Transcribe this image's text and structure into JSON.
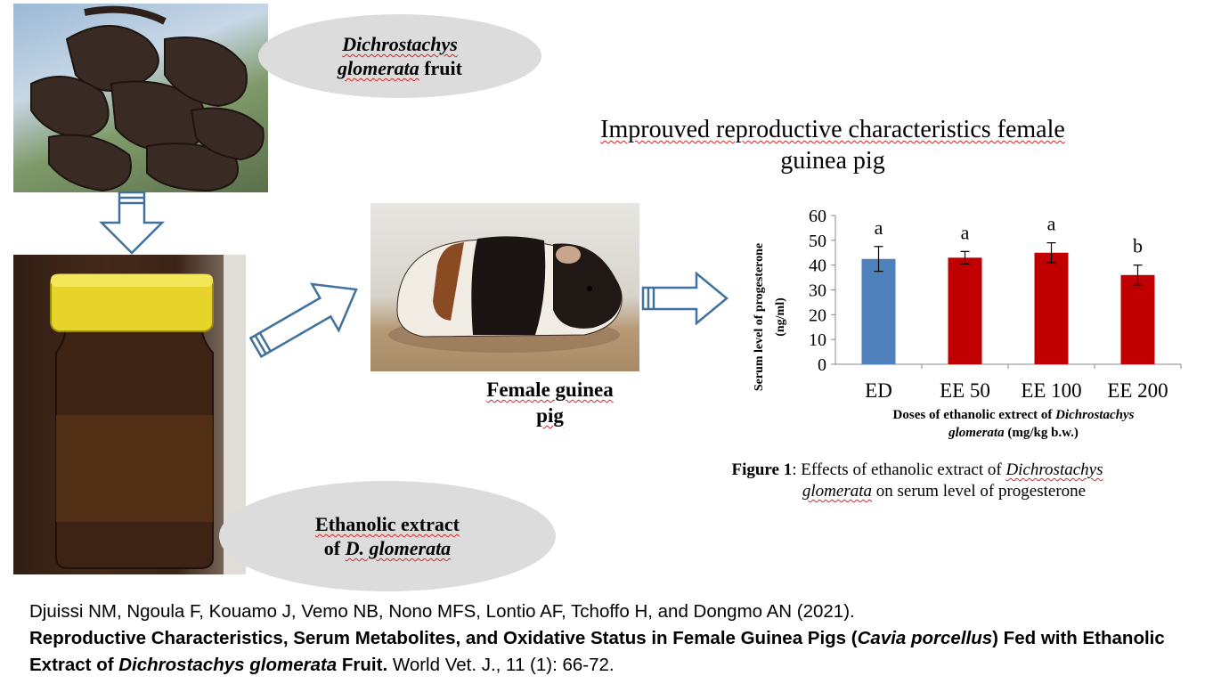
{
  "fruit_label": {
    "italic": "Dichrostachys glomerata",
    "rest": "fruit",
    "line1": "Dichrostachys",
    "line2_italic": "glomerata",
    "line2_rest": " fruit"
  },
  "extract_label": {
    "line1": "Ethanolic extract",
    "line2_prefix": "of ",
    "line2_italic": "D. glomerata"
  },
  "headline": {
    "line1": "Improuved reproductive characteristics female",
    "line2": "guinea pig"
  },
  "guinea_pig_caption": {
    "line1": "Female guinea",
    "line2": "pig"
  },
  "chart_data": {
    "type": "bar",
    "categories": [
      "ED",
      "EE 50",
      "EE 100",
      "EE 200"
    ],
    "values": [
      42.5,
      43,
      45,
      36
    ],
    "errors": [
      5,
      2.5,
      4,
      4
    ],
    "significance_letters": [
      "a",
      "a",
      "a",
      "b"
    ],
    "bar_colors": [
      "#4f81bd",
      "#c00000",
      "#c00000",
      "#c00000"
    ],
    "ylim": [
      0,
      60
    ],
    "yticks": [
      0,
      10,
      20,
      30,
      40,
      50,
      60
    ],
    "ylabel_line1": "Serum level of progesterone",
    "ylabel_line2": "(ng/ml)",
    "xlabel_line1_prefix": "Doses of ethanolic extrect of ",
    "xlabel_line1_italic": "Dichrostachys",
    "xlabel_line2_italic": "glomerata",
    "xlabel_line2_rest": " (mg/kg b.w.)"
  },
  "figure_caption": {
    "bold": "Figure 1",
    "text": ": Effects of ethanolic extract of ",
    "italic1": "Dichrostachys",
    "italic2": "glomerata",
    "rest": " on serum level of progesterone"
  },
  "citation": {
    "authors": "Djuissi NM, Ngoula F, Kouamo J, Vemo NB, Nono MFS, Lontio AF, Tchoffo H, and Dongmo AN (2021).",
    "title_part1": "Reproductive Characteristics, Serum Metabolites, and Oxidative Status in Female Guinea Pigs (",
    "title_italic1": "Cavia porcellus",
    "title_part2": ") Fed with Ethanolic Extract of ",
    "title_italic2": "Dichrostachys glomerata",
    "title_part3": " Fruit.",
    "journal": " World Vet. J., 11 (1): 66-72."
  },
  "colors": {
    "arrow_stroke": "#41719c",
    "ellipse_fill": "#dcdcdc",
    "control_bar": "#4f81bd",
    "treated_bar": "#c00000"
  }
}
